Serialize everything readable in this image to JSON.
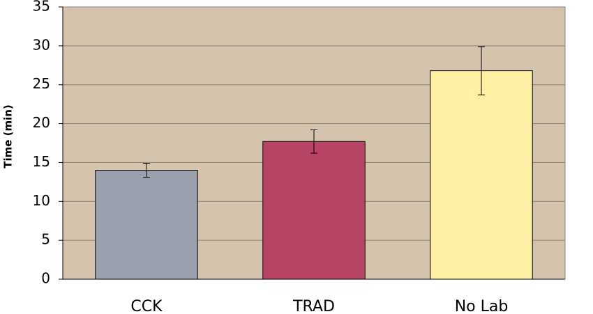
{
  "chart_data": {
    "type": "bar",
    "y_label": "Time (min)",
    "categories": [
      "CCK",
      "TRAD",
      "No Lab"
    ],
    "values": [
      14.0,
      17.7,
      26.8
    ],
    "errors": [
      0.9,
      1.5,
      3.1
    ],
    "colors": [
      "#9ca0ad",
      "#b84565",
      "#fff0a4"
    ],
    "ylim": [
      0,
      35
    ],
    "yticks": [
      0,
      5,
      10,
      15,
      20,
      25,
      30,
      35
    ],
    "grid": true
  }
}
